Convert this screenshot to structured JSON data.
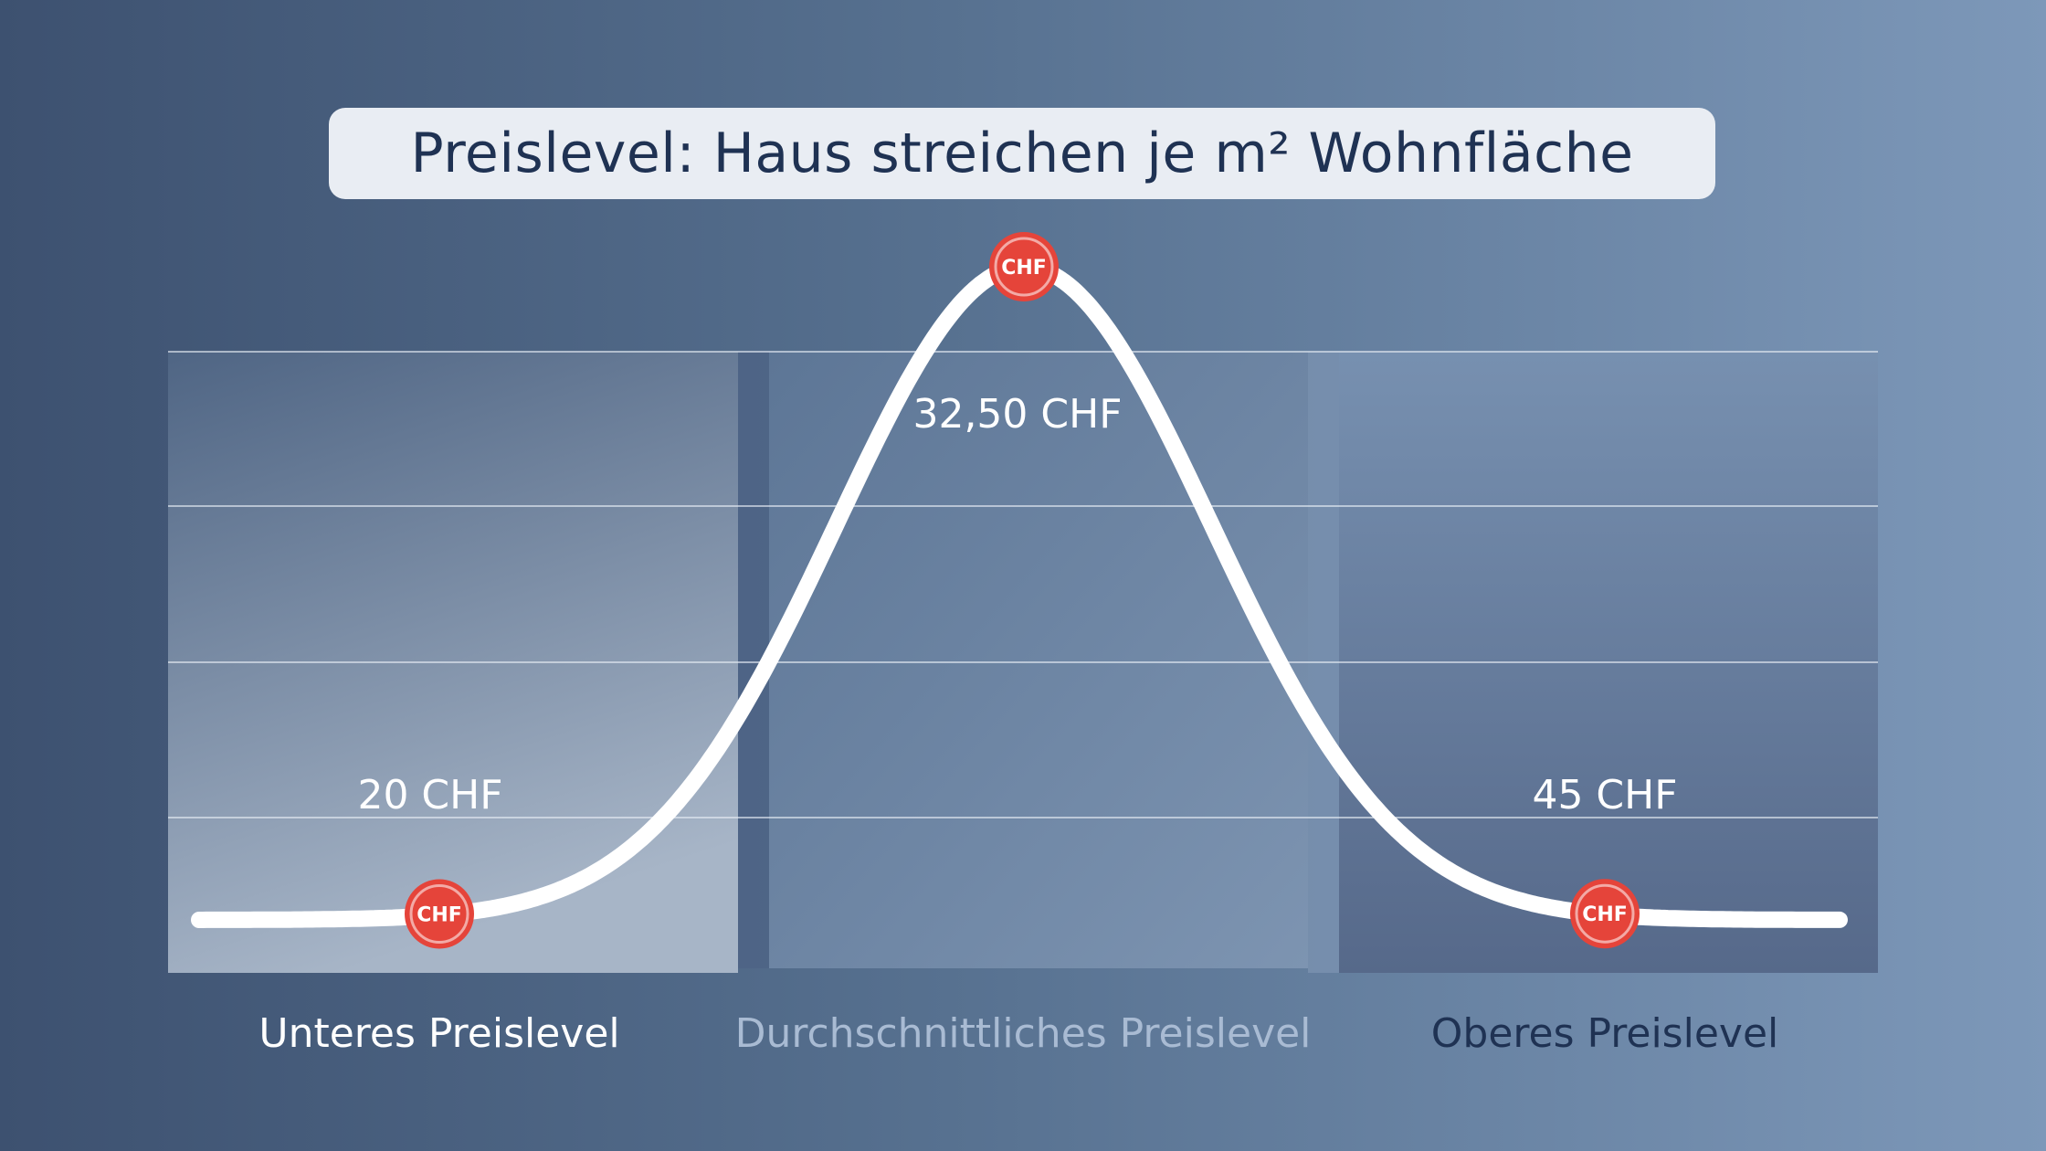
{
  "title": "Preislevel: Haus streichen je m² Wohnfläche",
  "chart_data": {
    "type": "line",
    "title": "Preislevel: Haus streichen je m² Wohnfläche",
    "categories": [
      "Unteres Preislevel",
      "Durchschnittliches Preislevel",
      "Oberes Preislevel"
    ],
    "markers": [
      {
        "label": "20 CHF",
        "value": 20,
        "category": "Unteres Preislevel"
      },
      {
        "label": "32,50 CHF",
        "value": 32.5,
        "category": "Durchschnittliches Preislevel"
      },
      {
        "label": "45 CHF",
        "value": 45,
        "category": "Oberes Preislevel"
      }
    ],
    "marker_badge": "CHF",
    "grid": true,
    "colors": {
      "curve": "#ffffff",
      "marker": "#e5443a",
      "label_low": "#ffffff",
      "label_mid": "#a9bbd3",
      "label_high": "#1f3253"
    }
  }
}
